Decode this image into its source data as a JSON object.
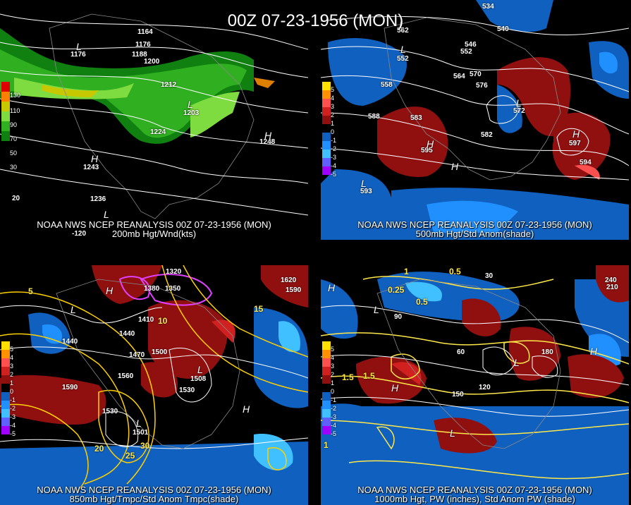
{
  "title": "00Z 07-23-1956 (MON)",
  "panels": {
    "p200": {
      "source": "NOAA NWS NCEP REANALYSIS 00Z 07-23-1956 (MON)",
      "field": "200mb Hgt/Wnd(kts)",
      "legend": [
        "130",
        "110",
        "90",
        "70",
        "50",
        "30"
      ],
      "legend_colors": [
        "#e00000",
        "#ff7f00",
        "#c8c800",
        "#7fdc40",
        "#30b020",
        "#108010"
      ],
      "labels": [
        "1164",
        "1176",
        "1188",
        "1200",
        "1212",
        "1224",
        "1236",
        "1203",
        "1243",
        "1248",
        "1176",
        "L",
        "L",
        "H",
        "H",
        "L",
        "20",
        "-120"
      ]
    },
    "p500": {
      "source": "NOAA NWS NCEP REANALYSIS 00Z 07-23-1956 (MON)",
      "field": "500mb Hgt/Std Anom(shade)",
      "legend": [
        "5",
        "4",
        "3",
        "2",
        "1",
        "0",
        "-1",
        "-2",
        "-3",
        "-4",
        "-5"
      ],
      "legend_colors": [
        "#ffe000",
        "#ff9000",
        "#ff5050",
        "#d02020",
        "#901010",
        "#000000",
        "#1060c0",
        "#2090ff",
        "#40c0ff",
        "#6060ff",
        "#a000ff"
      ],
      "labels": [
        "534",
        "540",
        "546",
        "552",
        "558",
        "564",
        "570",
        "576",
        "582",
        "588",
        "594",
        "562",
        "552",
        "572",
        "595",
        "597",
        "593",
        "583",
        "L",
        "L",
        "L",
        "H",
        "H",
        "H",
        "L"
      ]
    },
    "p850": {
      "source": "NOAA NWS NCEP REANALYSIS 00Z 07-23-1956 (MON)",
      "field": "850mb Hgt/Tmpc/Std Anom Tmpc(shade)",
      "legend": [
        "5",
        "4",
        "3",
        "2",
        "1",
        "0",
        "-1",
        "-2",
        "-3",
        "-4",
        "-5"
      ],
      "legend_colors": [
        "#ffe000",
        "#ff9000",
        "#ff5050",
        "#d02020",
        "#901010",
        "#000000",
        "#1060c0",
        "#2090ff",
        "#40c0ff",
        "#6060ff",
        "#a000ff"
      ],
      "labels": [
        "1320",
        "1350",
        "1380",
        "1410",
        "1440",
        "1470",
        "1500",
        "1530",
        "1560",
        "1590",
        "1620",
        "1440",
        "1590",
        "1530",
        "1501",
        "1508",
        "15",
        "20",
        "25",
        "30",
        "10",
        "5",
        "L",
        "H",
        "L",
        "H",
        "L"
      ]
    },
    "p1000": {
      "source": "NOAA NWS NCEP REANALYSIS 00Z 07-23-1956 (MON)",
      "field": "1000mb Hgt, PW (inches), Std Anom PW (shade)",
      "legend": [
        "5",
        "4",
        "3",
        "2",
        "1",
        "0",
        "-1",
        "-2",
        "-3",
        "-4",
        "-5"
      ],
      "legend_colors": [
        "#ffe000",
        "#ff9000",
        "#ff5050",
        "#d02020",
        "#901010",
        "#000000",
        "#1060c0",
        "#2090ff",
        "#40c0ff",
        "#6060ff",
        "#a000ff"
      ],
      "labels": [
        "0.25",
        "0.5",
        "1",
        "1.5",
        "30",
        "60",
        "90",
        "120",
        "150",
        "180",
        "210",
        "240",
        "1.5",
        "1",
        "0.5",
        "L",
        "H",
        "L",
        "H",
        "L",
        "H"
      ]
    }
  }
}
